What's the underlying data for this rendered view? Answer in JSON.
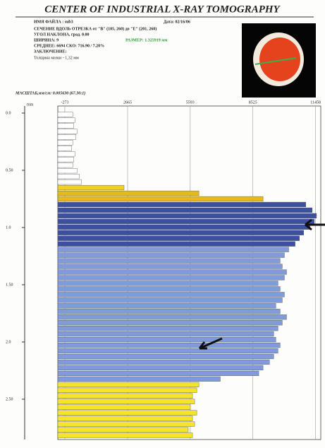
{
  "header": {
    "title": "CENTER OF INDUSTRIAL X-RAY TOMOGRAPHY",
    "lines": [
      "ИМЯ ФАЙЛА : sub3",
      "СЕЧЕНИЕ ВДОЛЬ ОТРЕЗКА от \"B\" (105, 260) до \"E\" (201, 260)",
      "УГОЛ НАКЛОНА, град.   0.00",
      "ШИРИНА: 9",
      "СРЕДНЕЕ:   6694   СКО:   716.90 / 7.20%",
      "ЗАКЛЮЧЕНИЕ:",
      "Толщина мазки - 1,32 мм"
    ],
    "date": "Дата: 02/16/06",
    "size": "РАЗМЕР: 1.325919 мм",
    "scale": "МАСШТАБ,мм/см: 0.005630  (67.30:1)"
  },
  "chart_data": {
    "type": "hbar",
    "y_label": "mm",
    "categories": [
      null,
      null,
      null,
      null,
      null,
      null,
      null,
      null,
      null,
      null,
      null,
      null,
      null,
      null,
      null,
      null,
      null,
      null,
      null,
      null,
      null,
      null,
      null,
      null,
      null,
      null,
      null,
      null,
      null,
      null,
      null,
      null,
      null,
      null,
      null,
      null,
      null,
      null,
      null,
      null,
      null,
      null,
      null,
      null,
      null,
      null,
      null,
      null,
      null,
      null,
      null,
      null,
      null,
      null,
      null,
      null,
      null,
      null
    ],
    "values": [
      100,
      200,
      150,
      300,
      250,
      100,
      50,
      200,
      150,
      100,
      300,
      400,
      500,
      2500,
      6000,
      9000,
      11000,
      11300,
      11500,
      11400,
      11200,
      10900,
      10700,
      10500,
      10200,
      10000,
      9800,
      9900,
      10100,
      10000,
      9700,
      9800,
      10000,
      9900,
      9600,
      9800,
      10100,
      9900,
      9700,
      9500,
      9600,
      9800,
      9700,
      9500,
      9300,
      9000,
      8800,
      7000,
      6000,
      5900,
      5700,
      5800,
      5600,
      5900,
      5700,
      5800,
      5500,
      5700
    ],
    "colors": [
      "#ffffff",
      "#ffffff",
      "#ffffff",
      "#ffffff",
      "#ffffff",
      "#ffffff",
      "#ffffff",
      "#ffffff",
      "#ffffff",
      "#ffffff",
      "#ffffff",
      "#ffffff",
      "#ffffff",
      "#f3cf22",
      "#e9b81c",
      "#e9b81c",
      "#3b4fa3",
      "#3b4fa3",
      "#3b4fa3",
      "#3b4fa3",
      "#3b4fa3",
      "#3b4fa3",
      "#3b4fa3",
      "#3b4fa3",
      "#7f9bd8",
      "#7f9bd8",
      "#7f9bd8",
      "#7f9bd8",
      "#7f9bd8",
      "#7f9bd8",
      "#7f9bd8",
      "#7f9bd8",
      "#7f9bd8",
      "#7f9bd8",
      "#7f9bd8",
      "#7f9bd8",
      "#7f9bd8",
      "#7f9bd8",
      "#7f9bd8",
      "#7f9bd8",
      "#7f9bd8",
      "#7f9bd8",
      "#7f9bd8",
      "#7f9bd8",
      "#7f9bd8",
      "#7f9bd8",
      "#7f9bd8",
      "#7f9bd8",
      "#f4e42a",
      "#f4e42a",
      "#f4e42a",
      "#f4e42a",
      "#f4e42a",
      "#f4e42a",
      "#f4e42a",
      "#f4e42a",
      "#f4e42a",
      "#f4e42a"
    ],
    "xlim": [
      -600,
      11700
    ],
    "xticks": [
      -273,
      2665,
      5593,
      8525,
      11458
    ],
    "ylim": [
      0,
      2.84
    ],
    "yticks": [
      {
        "value": 0,
        "label": "0.0"
      },
      {
        "value": 0.5,
        "label": "0.50"
      },
      {
        "value": 1,
        "label": "1.0"
      },
      {
        "value": 1.5,
        "label": "1.50"
      },
      {
        "value": 2,
        "label": "2.0"
      },
      {
        "value": 2.5,
        "label": "2.50"
      }
    ],
    "grid": true
  }
}
